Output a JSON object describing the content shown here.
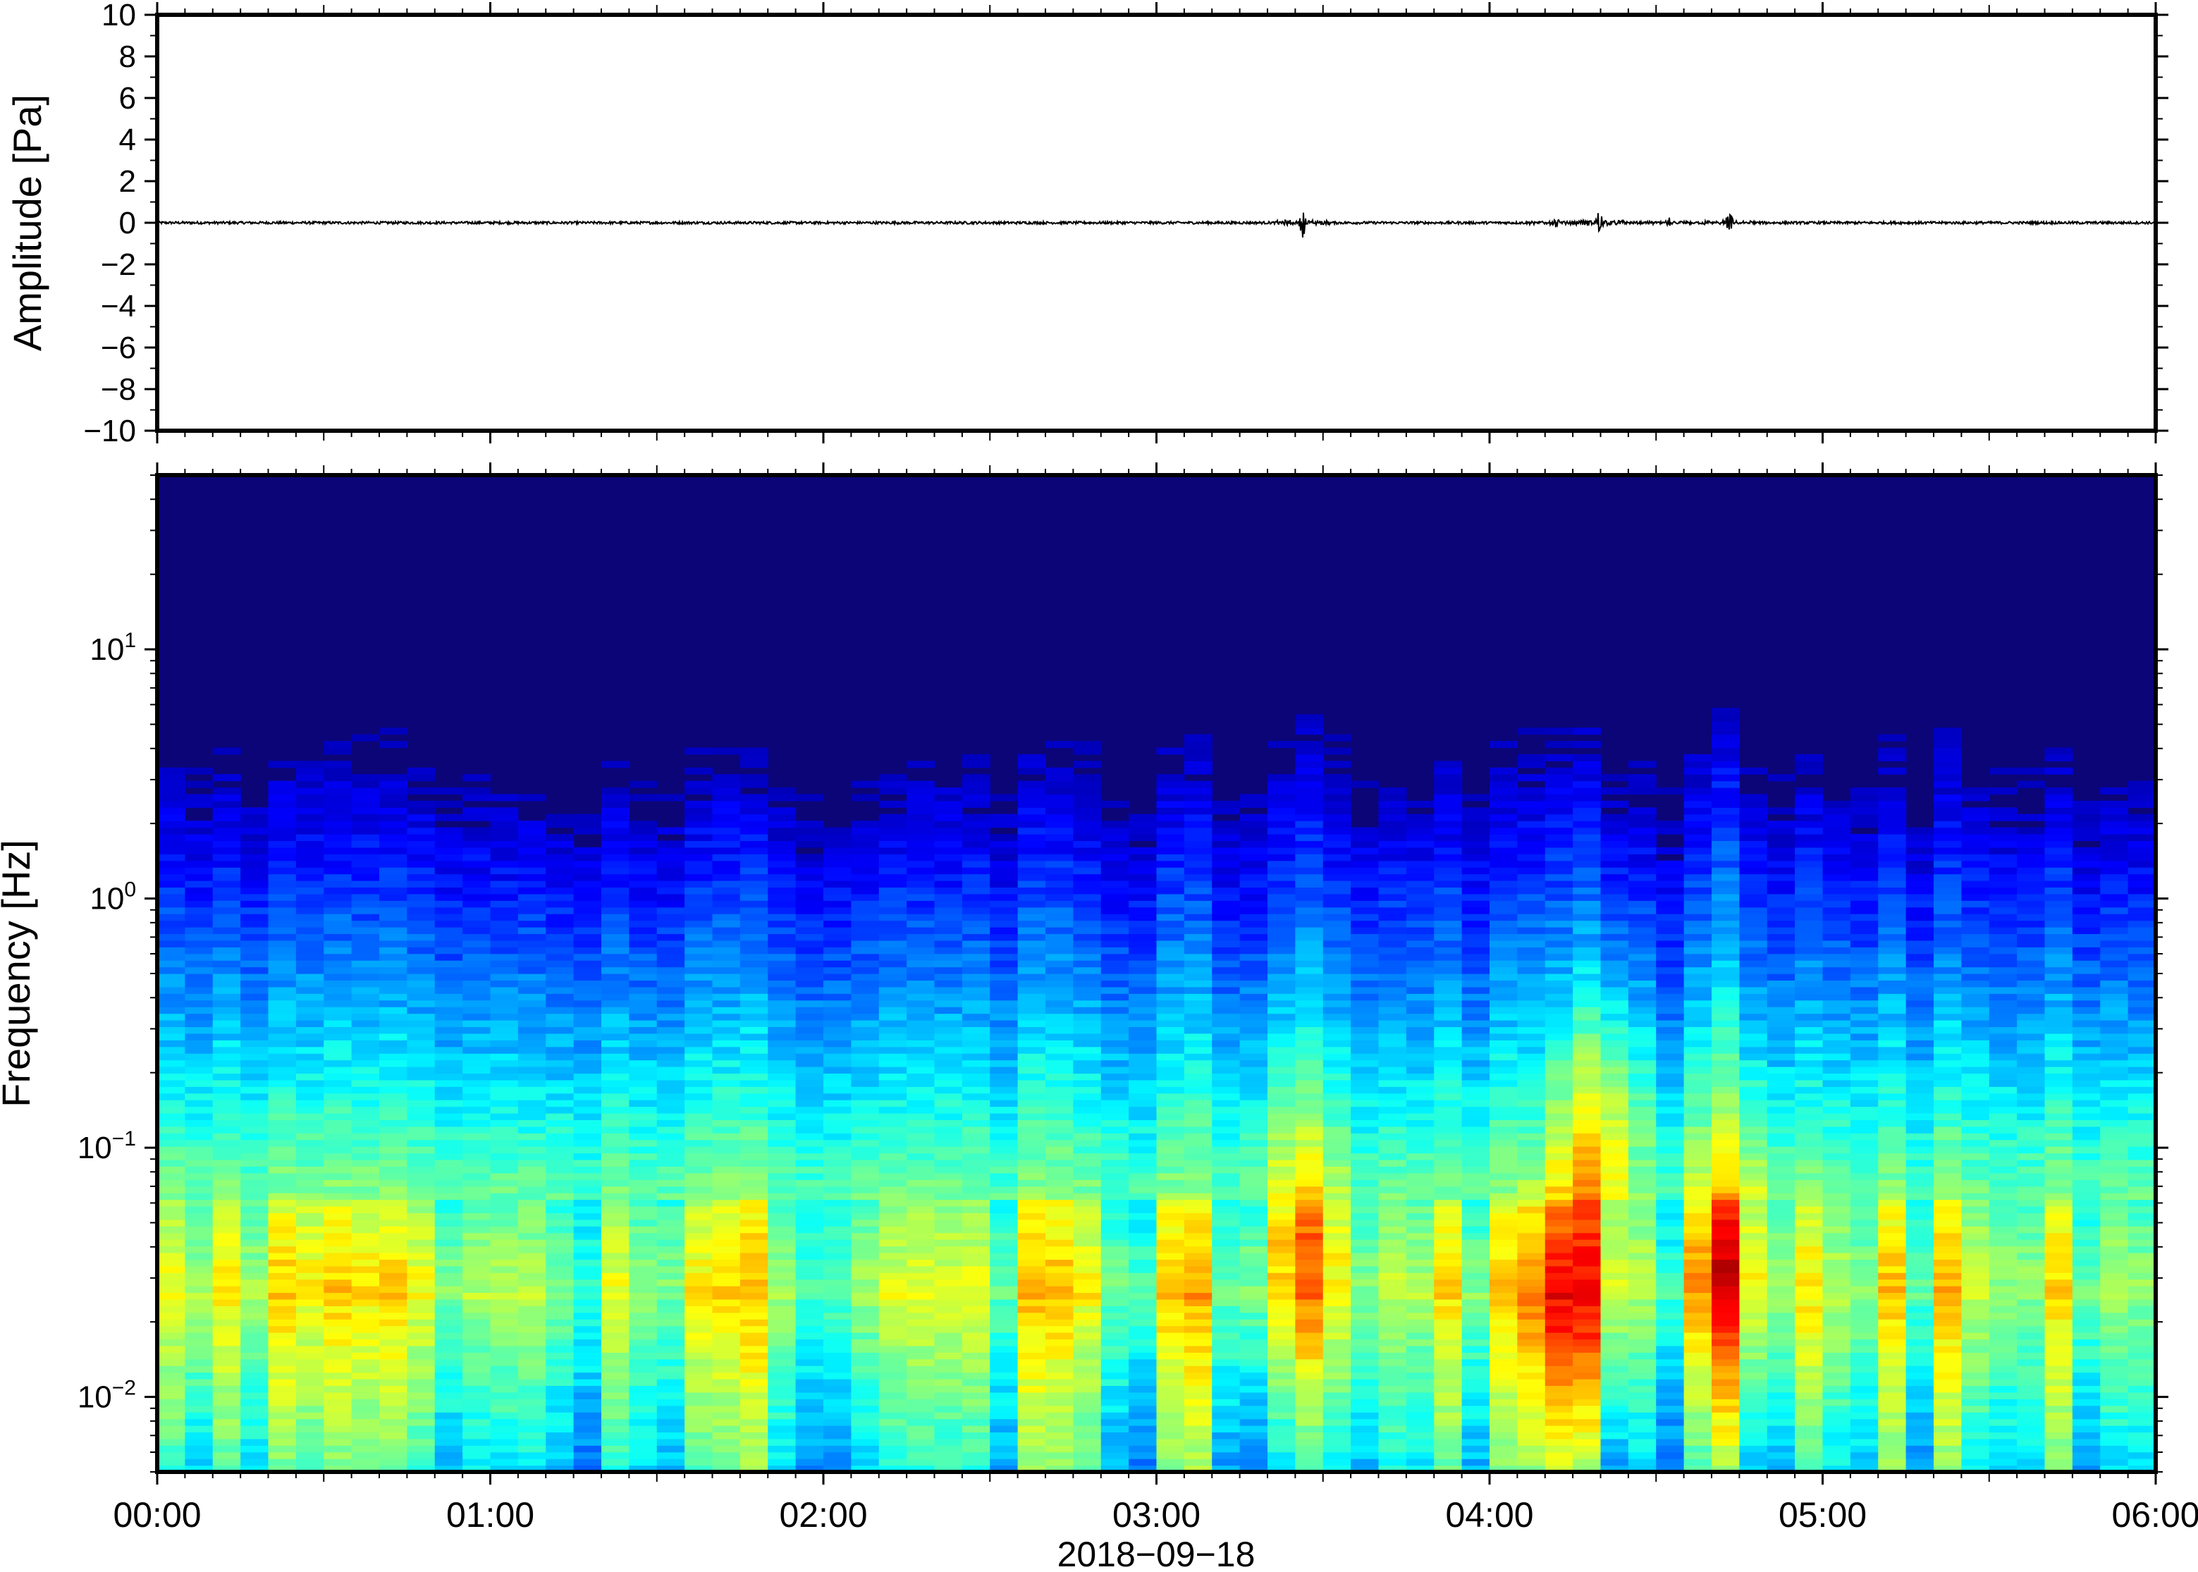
{
  "chart_data": [
    {
      "type": "line",
      "ylabel": "Amplitude [Pa]",
      "ylim": [
        -10,
        10
      ],
      "yticks": [
        10,
        8,
        6,
        4,
        2,
        0,
        -2,
        -4,
        -6,
        -8,
        -10
      ],
      "ytick_labels": [
        "10",
        "8",
        "6",
        "4",
        "2",
        "0",
        "−2",
        "−4",
        "−6",
        "−8",
        "−10"
      ],
      "xlim_hours": [
        0,
        6
      ],
      "series": [
        {
          "values": "near-zero waveform with small transients",
          "transients": [
            {
              "time_hours": 3.44,
              "amplitude": 0.7
            },
            {
              "time_hours": 4.2,
              "amplitude": 0.3
            },
            {
              "time_hours": 4.33,
              "amplitude": 0.8
            },
            {
              "time_hours": 4.54,
              "amplitude": 0.25
            },
            {
              "time_hours": 4.72,
              "amplitude": 0.55
            }
          ]
        }
      ]
    },
    {
      "type": "heatmap",
      "ylabel": "Frequency [Hz]",
      "yscale": "log",
      "ylim_hz": [
        0.005,
        50
      ],
      "ytick_values": [
        10,
        1,
        0.1,
        0.01
      ],
      "ytick_labels": [
        {
          "base": "10",
          "exp": "1"
        },
        {
          "base": "10",
          "exp": "0"
        },
        {
          "base": "10",
          "exp": "−1"
        },
        {
          "base": "10",
          "exp": "−2"
        }
      ],
      "xlim_hours": [
        0,
        6
      ],
      "colormap": "jet",
      "colors": {
        "high": "#fd6e3b",
        "mid": "#b8f59a",
        "low": "#0c0577"
      },
      "energy_features": [
        {
          "time_hours": 3.43,
          "peak_hz": 0.035,
          "extends_to_hz": 8
        },
        {
          "time_hours": 4.25,
          "peak_hz": 0.015,
          "extends_to_hz": 0.1
        },
        {
          "time_hours": 4.33,
          "peak_hz": 0.1,
          "extends_to_hz": 8
        },
        {
          "time_hours": 4.72,
          "peak_hz": 0.03,
          "extends_to_hz": 8
        }
      ]
    }
  ],
  "x_axis": {
    "tick_labels": [
      "00:00",
      "01:00",
      "02:00",
      "03:00",
      "04:00",
      "05:00",
      "06:00"
    ],
    "date_label": "2018−09−18"
  }
}
